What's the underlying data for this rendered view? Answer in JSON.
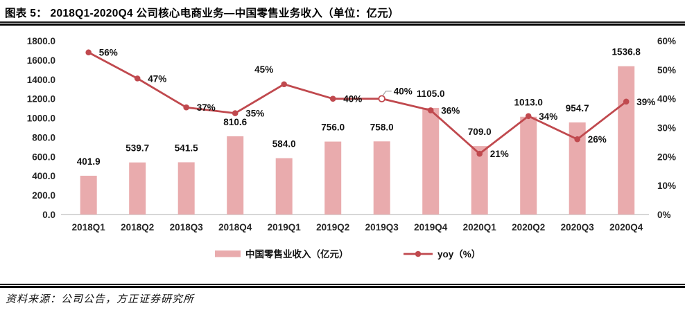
{
  "title": "图表 5：  2018Q1-2020Q4 公司核心电商业务—中国零售业务收入（单位：亿元）",
  "source": "资料来源：公司公告，方正证券研究所",
  "chart_data": {
    "type": "combo-bar-line",
    "categories": [
      "2018Q1",
      "2018Q2",
      "2018Q3",
      "2018Q4",
      "2019Q1",
      "2019Q2",
      "2019Q3",
      "2019Q4",
      "2020Q1",
      "2020Q2",
      "2020Q3",
      "2020Q4"
    ],
    "series": [
      {
        "name": "中国零售业收入（亿元）",
        "type": "bar",
        "axis": "left",
        "color": "#e9abad",
        "values": [
          401.9,
          539.7,
          541.5,
          810.6,
          584.0,
          756.0,
          758.0,
          1105.0,
          709.0,
          1013.0,
          954.7,
          1536.8
        ],
        "labels": [
          "401.9",
          "539.7",
          "541.5",
          "810.6",
          "584.0",
          "756.0",
          "758.0",
          "1105.0",
          "709.0",
          "1013.0",
          "954.7",
          "1536.8"
        ]
      },
      {
        "name": "yoy（%）",
        "type": "line",
        "axis": "right",
        "color": "#c0494e",
        "values": [
          56,
          47,
          37,
          35,
          45,
          40,
          40,
          36,
          21,
          34,
          26,
          39
        ],
        "labels": [
          "56%",
          "47%",
          "37%",
          "35%",
          "45%",
          "40%",
          "40%",
          "36%",
          "21%",
          "34%",
          "26%",
          "39%"
        ]
      }
    ],
    "left_axis": {
      "min": 0,
      "max": 1800,
      "step": 200,
      "tick_labels": [
        "0.0",
        "200.0",
        "400.0",
        "600.0",
        "800.0",
        "1000.0",
        "1200.0",
        "1400.0",
        "1600.0",
        "1800.0"
      ]
    },
    "right_axis": {
      "min": 0,
      "max": 60,
      "step": 10,
      "tick_labels": [
        "0%",
        "10%",
        "20%",
        "30%",
        "40%",
        "50%",
        "60%"
      ]
    },
    "grid": false,
    "legend_position": "bottom",
    "annotations": {
      "callout": {
        "index": 6,
        "leader_color": "#a6a6a6"
      }
    },
    "label_overrides": {
      "4": {
        "dx": -29,
        "dy": -17,
        "anchor": "middle"
      },
      "6": {
        "dx": 17,
        "dy": -6,
        "anchor": "start"
      }
    },
    "axis_line_color": "#bfbfbf"
  }
}
